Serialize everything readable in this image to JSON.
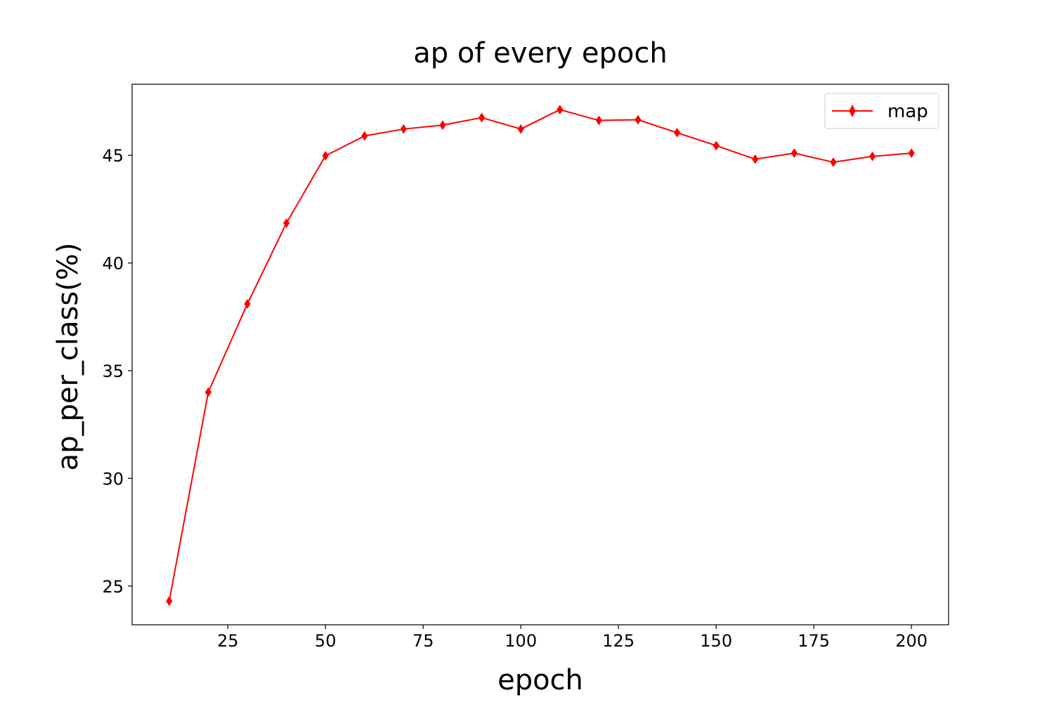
{
  "chart_data": {
    "type": "line",
    "title": "ap of every epoch",
    "xlabel": "epoch",
    "ylabel": "ap_per_class(%)",
    "x": [
      10,
      20,
      30,
      40,
      50,
      60,
      70,
      80,
      90,
      100,
      110,
      120,
      130,
      140,
      150,
      160,
      170,
      180,
      190,
      200
    ],
    "series": [
      {
        "name": "map",
        "color": "#ff0000",
        "marker": "thin-diamond",
        "values": [
          24.3,
          34.0,
          38.1,
          41.85,
          44.98,
          45.9,
          46.22,
          46.4,
          46.75,
          46.22,
          47.12,
          46.62,
          46.65,
          46.05,
          45.45,
          44.82,
          45.1,
          44.68,
          44.95,
          45.1
        ]
      }
    ],
    "xlim": [
      0.5,
      209.5
    ],
    "ylim": [
      23.2,
      48.3
    ],
    "xticks": [
      25,
      50,
      75,
      100,
      125,
      150,
      175,
      200
    ],
    "yticks": [
      25,
      30,
      35,
      40,
      45
    ],
    "grid": false,
    "legend_position": "upper right"
  }
}
